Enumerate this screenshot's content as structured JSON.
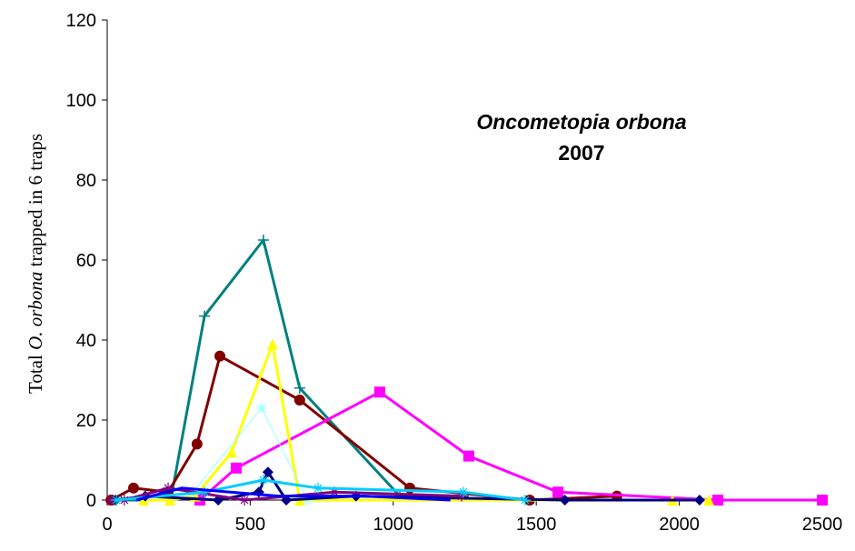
{
  "chart_data": {
    "type": "line",
    "title": "Oncometopia orbona",
    "subtitle": "2007",
    "y_label": [
      "Total ",
      "O. orbona",
      " trapped in 6 traps"
    ],
    "xlim": [
      0,
      2500
    ],
    "xticks": [
      0,
      500,
      1000,
      1500,
      2000,
      2500
    ],
    "ylim": [
      0,
      120
    ],
    "yticks": [
      0,
      20,
      40,
      60,
      80,
      100,
      120
    ],
    "series": [
      {
        "color": "#008080",
        "marker": "plus",
        "x": [
          20,
          222,
          340,
          546,
          673,
          1023,
          1245
        ],
        "values": [
          0,
          0,
          46,
          65,
          28,
          1,
          1
        ]
      },
      {
        "color": "#800000",
        "marker": "circle",
        "x": [
          13,
          92,
          213,
          314,
          394,
          673,
          1058,
          1477,
          1782
        ],
        "values": [
          0,
          3,
          2,
          14,
          36,
          25,
          3,
          0,
          1
        ]
      },
      {
        "color": "#ff00ff",
        "marker": "square",
        "x": [
          324,
          451,
          953,
          1264,
          1576,
          2135,
          2500
        ],
        "values": [
          0,
          8,
          27,
          11,
          2,
          0,
          0
        ]
      },
      {
        "color": "#ffff00",
        "marker": "triangle",
        "x": [
          127,
          219,
          308,
          435,
          578,
          673,
          1976,
          2103
        ],
        "values": [
          0,
          0,
          1,
          12,
          39,
          0,
          0,
          0
        ]
      },
      {
        "color": "#99ffff",
        "marker": "star",
        "x": [
          300,
          540,
          700
        ],
        "values": [
          2,
          23,
          0
        ]
      },
      {
        "color": "#000080",
        "marker": "diamond",
        "x": [
          29,
          133,
          388,
          530,
          562,
          626,
          870,
          1600,
          2071
        ],
        "values": [
          0,
          1,
          0,
          2,
          7,
          0,
          1,
          0,
          0
        ]
      },
      {
        "color": "#800080",
        "marker": "star",
        "x": [
          13,
          60,
          213,
          480,
          794,
          1239
        ],
        "values": [
          0,
          0,
          3,
          0,
          2,
          1
        ]
      },
      {
        "color": "#00ccff",
        "marker": "star",
        "x": [
          32,
          340,
          546,
          737,
          1245,
          1461
        ],
        "values": [
          0,
          2,
          5,
          3,
          2,
          0
        ]
      },
      {
        "color": "#0000ff",
        "marker": "none",
        "x": [
          102,
          260,
          600,
          900,
          1200
        ],
        "values": [
          0,
          3,
          1,
          1,
          0
        ]
      }
    ]
  }
}
